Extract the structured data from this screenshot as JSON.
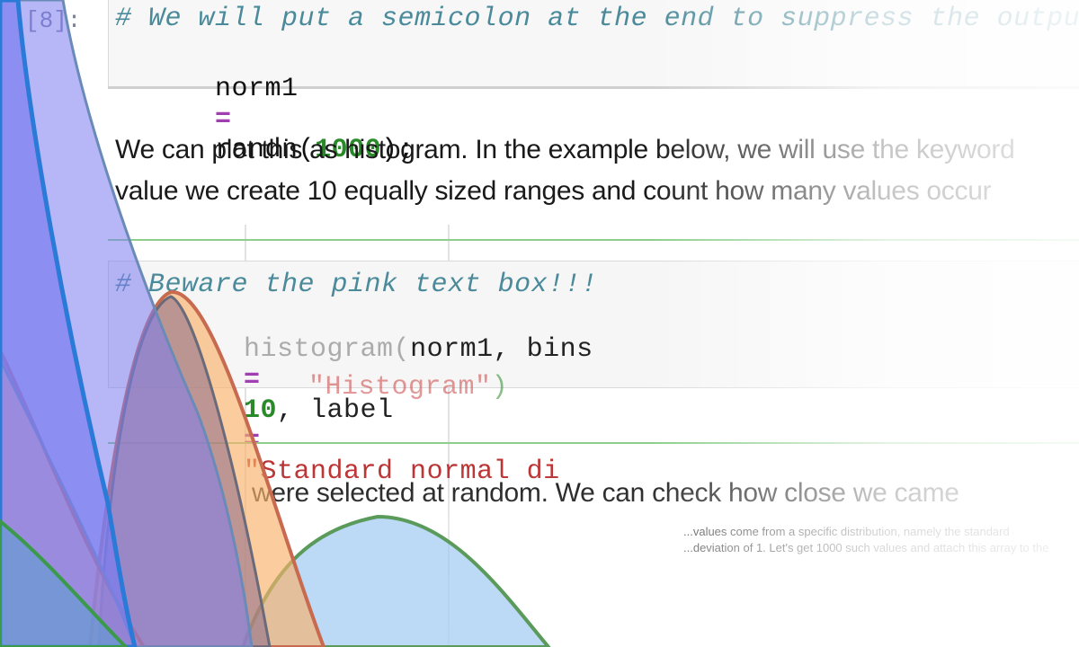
{
  "cell1": {
    "prompt": "[8]:",
    "comment": "# We will put a semicolon at the end to suppress the output",
    "code_var": "norm1",
    "code_eq": "=",
    "code_fn": "randn(",
    "code_num": "1000",
    "code_end": ");"
  },
  "markdown": {
    "line1": "We can plot this as histogram. In the example below, we will use the keyword",
    "line2": "value we create 10 equally sized ranges and count how many values occur",
    "line3": "were selected at random. We can check how close we came",
    "small1": "...values come from a specific distribution, namely the standard",
    "small2": "...deviation of 1. Let's get 1000 such values and attach this array to the"
  },
  "cell2": {
    "comment": "# Beware the pink text box!!!",
    "fn": "histogram(",
    "arg1": "norm1, bins",
    "eq": "=",
    "num": "10",
    "arg2": ", label",
    "eq2": "=",
    "str": "\"Standard normal di",
    "line2_str": "\"Histogram\"",
    "line2_end": ")"
  },
  "colors": {
    "blue": "#7b7cf0",
    "pink": "#d98f96",
    "orange": "#f7b06a",
    "green": "#5a9a5a",
    "lightblue": "#8fc0f0"
  }
}
